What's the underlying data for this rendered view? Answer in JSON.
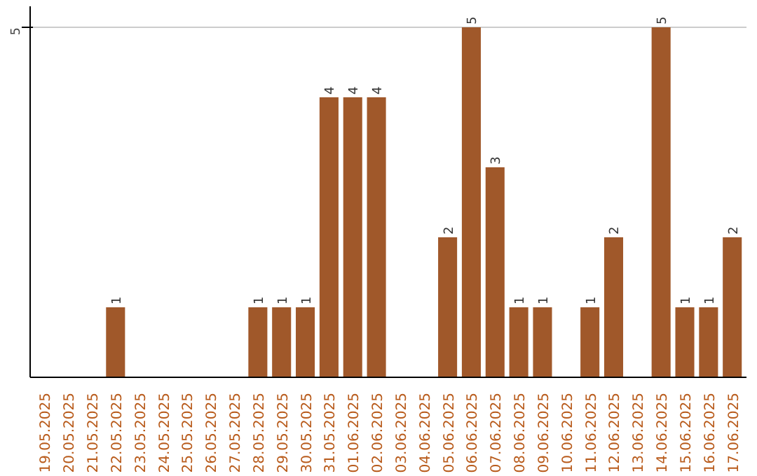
{
  "chart_data": {
    "type": "bar",
    "categories": [
      "19.05.2025",
      "20.05.2025",
      "21.05.2025",
      "22.05.2025",
      "23.05.2025",
      "24.05.2025",
      "25.05.2025",
      "26.05.2025",
      "27.05.2025",
      "28.05.2025",
      "29.05.2025",
      "30.05.2025",
      "31.05.2025",
      "01.06.2025",
      "02.06.2025",
      "03.06.2025",
      "04.06.2025",
      "05.06.2025",
      "06.06.2025",
      "07.06.2025",
      "08.06.2025",
      "09.06.2025",
      "10.06.2025",
      "11.06.2025",
      "12.06.2025",
      "13.06.2025",
      "14.06.2025",
      "15.06.2025",
      "16.06.2025",
      "17.06.2025"
    ],
    "values": [
      0,
      0,
      0,
      1,
      0,
      0,
      0,
      0,
      0,
      1,
      1,
      1,
      4,
      4,
      4,
      0,
      0,
      2,
      5,
      3,
      1,
      1,
      0,
      1,
      2,
      0,
      5,
      1,
      1,
      2
    ],
    "value_labels": [
      null,
      null,
      null,
      "1",
      null,
      null,
      null,
      null,
      null,
      "1",
      "1",
      "1",
      "4",
      "4",
      "4",
      null,
      null,
      "2",
      "5",
      "3",
      "1",
      "1",
      null,
      "1",
      "2",
      null,
      "5",
      "1",
      "1",
      "2"
    ],
    "color": "#a0582a",
    "ylim": [
      0,
      5.3
    ],
    "yticks": [
      5
    ],
    "grid": "y"
  }
}
